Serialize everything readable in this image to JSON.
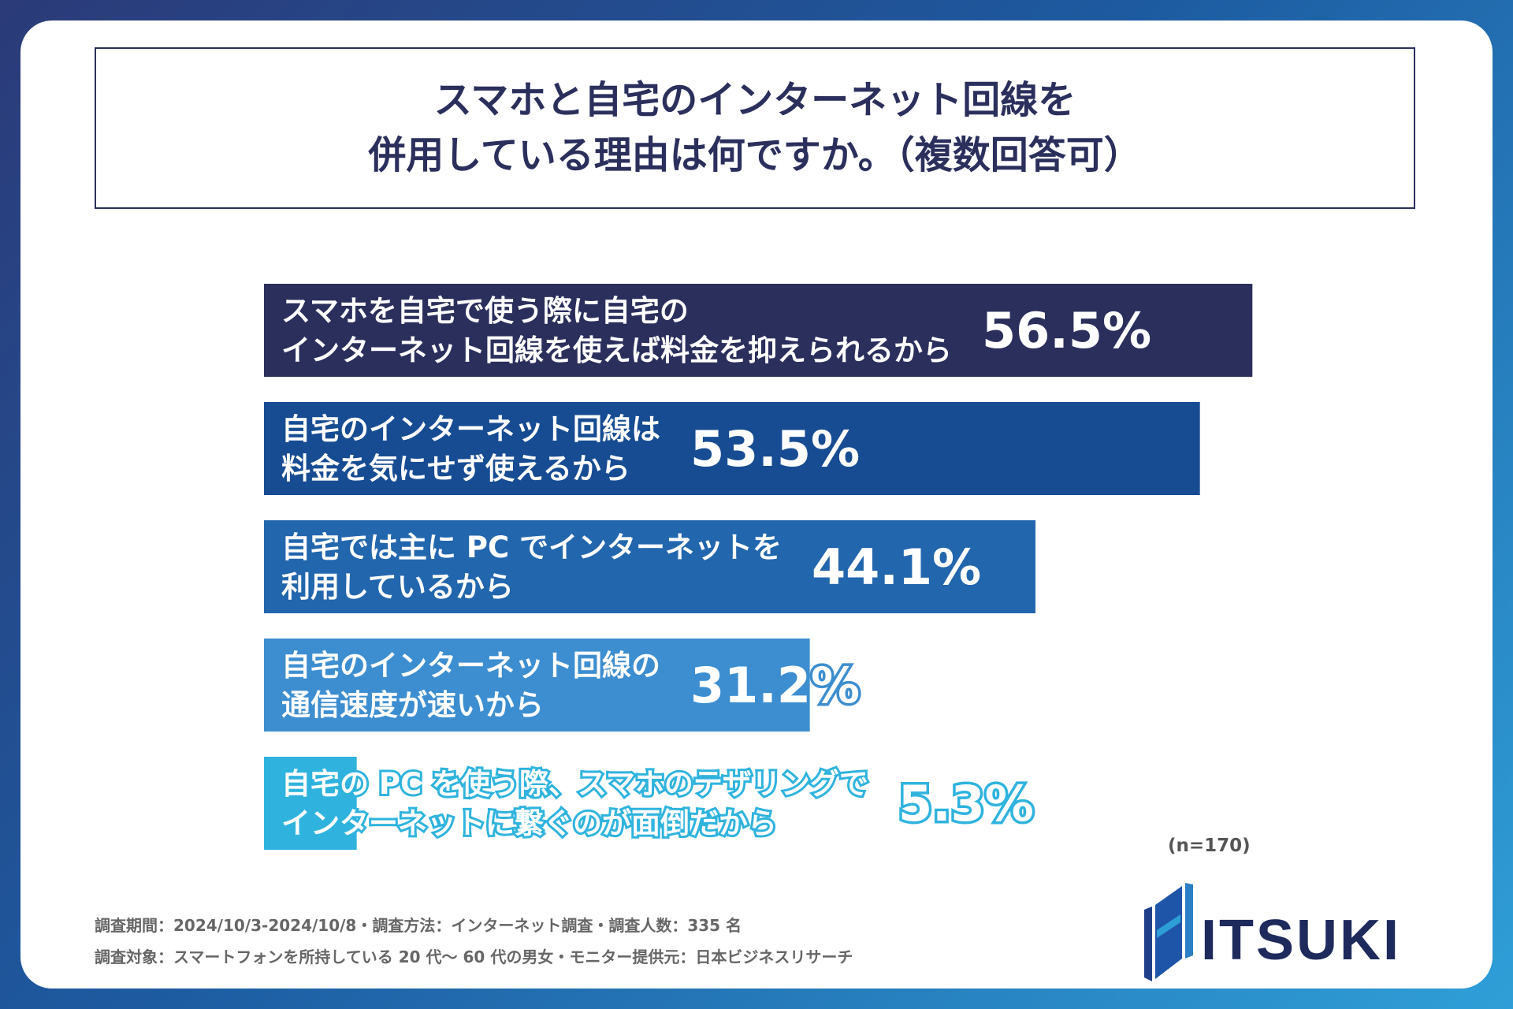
{
  "title": {
    "line1": "スマホと自宅のインターネット回線を",
    "line2": "併用している理由は何ですか。（複数回答可）"
  },
  "chart_data": {
    "type": "bar",
    "orientation": "horizontal",
    "categories": [
      [
        "スマホを自宅で使う際に自宅の",
        "インターネット回線を使えば料金を抑えられるから"
      ],
      [
        "自宅のインターネット回線は",
        "料金を気にせず使えるから"
      ],
      [
        "自宅では主に PC でインターネットを",
        "利用しているから"
      ],
      [
        "自宅のインターネット回線の",
        "通信速度が速いから"
      ],
      [
        "自宅の PC を使う際、スマホのテザリングで",
        "インターネットに繋ぐのが面倒だから"
      ]
    ],
    "values": [
      56.5,
      53.5,
      44.1,
      31.2,
      5.3
    ],
    "value_labels": [
      "56.5%",
      "53.5%",
      "44.1%",
      "31.2%",
      "5.3%"
    ],
    "bar_colors": [
      "#2b2f5c",
      "#174c93",
      "#2266ad",
      "#3d8ed0",
      "#2fb3de"
    ],
    "grid": false,
    "legend": "none"
  },
  "sample_note": "(n=170)",
  "footer": {
    "line1": "調査期間：2024/10/3-2024/10/8・調査方法：インターネット調査・調査人数：335 名",
    "line2": "調査対象：スマートフォンを所持している 20 代～ 60 代の男女・モニター提供元：日本ビジネスリサーチ"
  },
  "logo": {
    "text": "ITSUKI",
    "icon": "itsuki-logo-mark"
  }
}
